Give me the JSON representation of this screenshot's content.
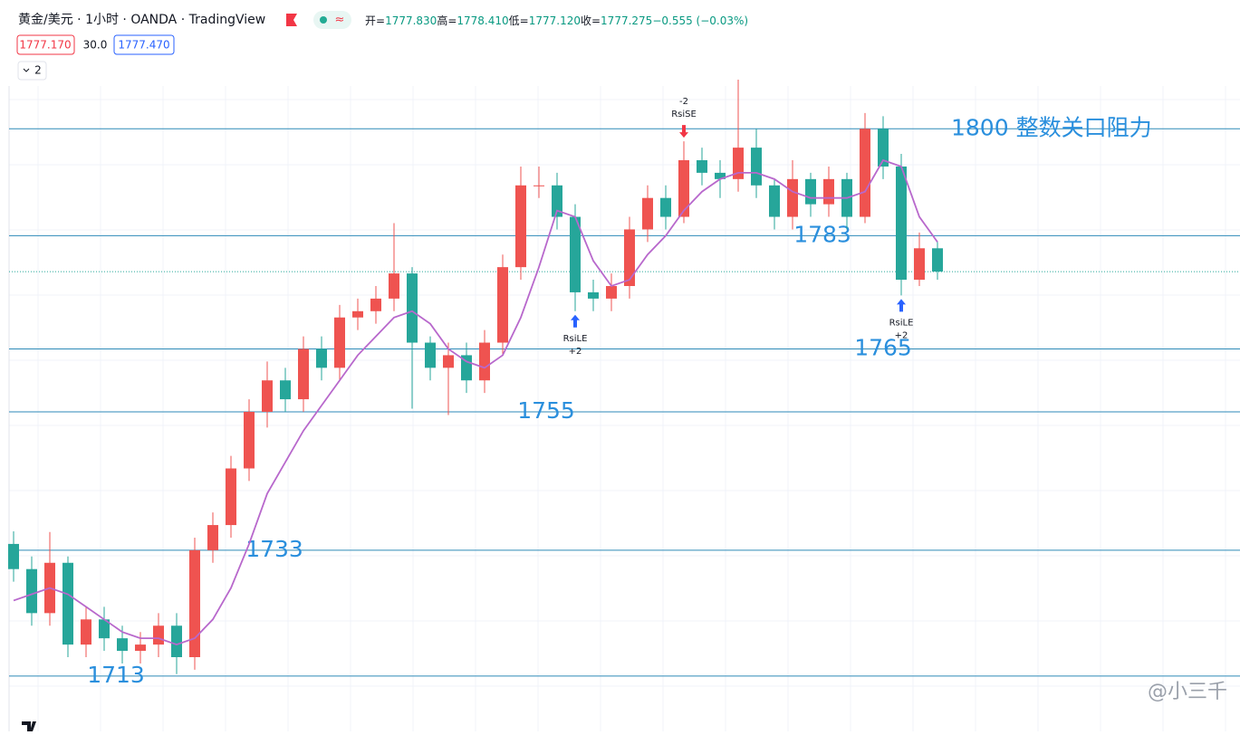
{
  "header": {
    "symbol": "黄金/美元 · 1小时 · OANDA · TradingView",
    "badge": "≈",
    "ohlc": [
      {
        "label": "开=",
        "value": "1777.830"
      },
      {
        "label": "高=",
        "value": "1778.410"
      },
      {
        "label": "低=",
        "value": "1777.120"
      },
      {
        "label": "收=",
        "value": "1777.275"
      }
    ],
    "change": "−0.555 (−0.03%)",
    "sell": "1777.170",
    "spread": "30.0",
    "buy": "1777.470",
    "indicators": "2"
  },
  "chart_data": {
    "type": "candlestick",
    "ylim": [
      1704.2,
      1806.8
    ],
    "up_color": "#ef5350",
    "down_color": "#26a69a",
    "ma_color": "#b868cc",
    "open": [
      1734,
      1730,
      1723,
      1731,
      1718,
      1722,
      1719,
      1717,
      1718,
      1721,
      1716,
      1733,
      1737,
      1746,
      1755,
      1760,
      1757,
      1765,
      1762,
      1770,
      1771,
      1773,
      1777,
      1766,
      1762,
      1764,
      1760,
      1766,
      1778,
      1791,
      1791,
      1786,
      1774,
      1773,
      1775,
      1784,
      1789,
      1786,
      1795,
      1793,
      1792,
      1797,
      1791,
      1786,
      1792,
      1788,
      1792,
      1786,
      1800,
      1794,
      1776,
      1781
    ],
    "high": [
      1736,
      1732,
      1735.9,
      1732,
      1724,
      1724,
      1721,
      1720,
      1723,
      1723,
      1735,
      1739,
      1748,
      1757,
      1763,
      1762,
      1767,
      1767,
      1772,
      1773,
      1775,
      1785,
      1778,
      1767,
      1766,
      1766,
      1768,
      1780,
      1794,
      1794,
      1793,
      1788,
      1776,
      1777,
      1786,
      1791,
      1791,
      1798,
      1797,
      1795,
      1807.8,
      1800,
      1792,
      1795,
      1793,
      1794,
      1793,
      1802.5,
      1802,
      1796,
      1783.5,
      1782
    ],
    "low": [
      1728,
      1721,
      1721,
      1716,
      1716,
      1717,
      1715,
      1715,
      1716,
      1713.3,
      1714,
      1731,
      1735,
      1744,
      1752.5,
      1755,
      1755,
      1760,
      1760,
      1768,
      1769,
      1771,
      1755.5,
      1760,
      1754.5,
      1758,
      1758,
      1764,
      1776,
      1789,
      1784,
      1771,
      1771,
      1771,
      1773,
      1782,
      1784,
      1785,
      1791,
      1789,
      1790,
      1789,
      1784,
      1784,
      1786,
      1786,
      1784,
      1785,
      1792,
      1773.5,
      1775,
      1776
    ],
    "close": [
      1730,
      1723,
      1731,
      1718,
      1722,
      1719,
      1717,
      1718,
      1721,
      1716,
      1733,
      1737,
      1746,
      1755,
      1760,
      1757,
      1765,
      1762,
      1770,
      1771,
      1773,
      1777,
      1766,
      1762,
      1764,
      1760,
      1766,
      1778,
      1791,
      1791,
      1786,
      1774,
      1773,
      1775,
      1784,
      1789,
      1786,
      1795,
      1793,
      1792,
      1797,
      1791,
      1786,
      1792,
      1788,
      1792,
      1786,
      1800,
      1794,
      1776,
      1781,
      1777.3
    ],
    "ma": [
      1725,
      1726,
      1727,
      1726,
      1724,
      1722,
      1720,
      1719,
      1719,
      1718,
      1719,
      1722,
      1727,
      1734,
      1742,
      1747,
      1752,
      1756,
      1760,
      1764,
      1767,
      1770,
      1771,
      1769,
      1765,
      1763,
      1762,
      1764,
      1770,
      1778,
      1787,
      1786,
      1779,
      1775,
      1776,
      1780,
      1783,
      1787,
      1790,
      1792,
      1793,
      1793,
      1792,
      1790,
      1789,
      1789,
      1789,
      1790,
      1795,
      1794,
      1786,
      1782
    ],
    "levels": [
      {
        "value": 1713,
        "label": "1713"
      },
      {
        "value": 1733,
        "label": "1733"
      },
      {
        "value": 1755,
        "label": "1755"
      },
      {
        "value": 1765,
        "label": "1765"
      },
      {
        "value": 1783,
        "label": "1783"
      },
      {
        "value": 1800,
        "label": "1800 整数关口阻力"
      }
    ],
    "last_price": 1777.275,
    "signals": [
      {
        "label": "RsiLE",
        "qty": "+2"
      },
      {
        "label": "RsiSE",
        "qty": "-2"
      },
      {
        "label": "RsiLE",
        "qty": "+2"
      }
    ],
    "watermark": "@小三千"
  }
}
